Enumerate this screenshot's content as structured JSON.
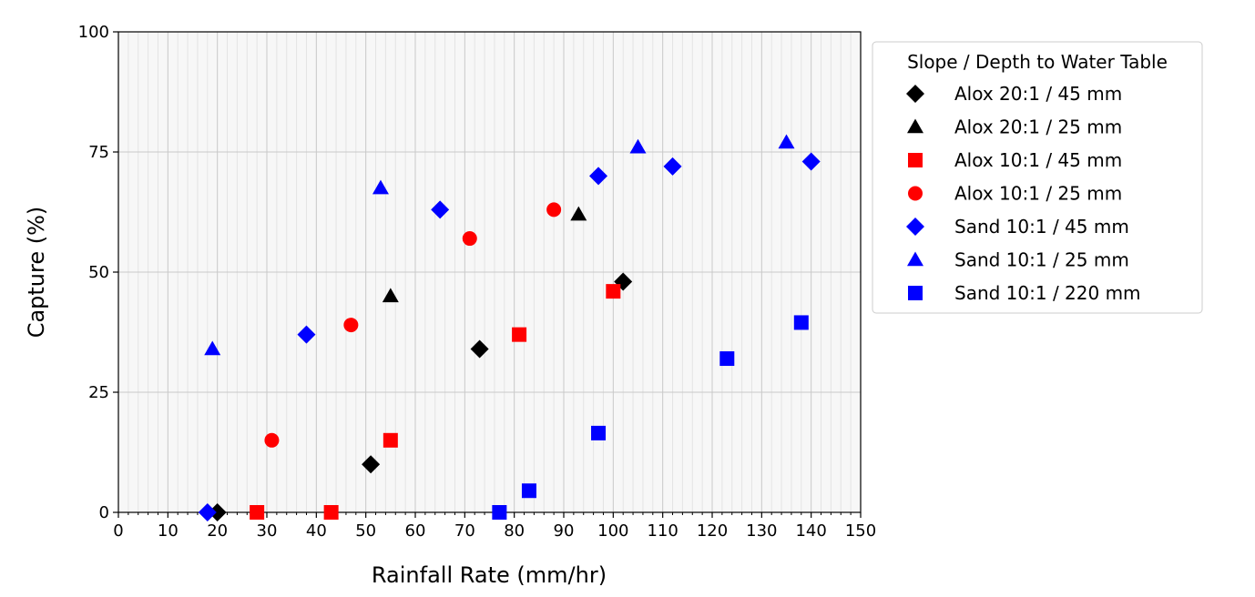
{
  "chart_data": {
    "type": "scatter",
    "title": "",
    "xlabel": "Rainfall Rate (mm/hr)",
    "ylabel": "Capture (%)",
    "xlim": [
      0,
      150
    ],
    "ylim": [
      0,
      100
    ],
    "x_ticks": [
      "0",
      "10",
      "20",
      "30",
      "40",
      "50",
      "60",
      "70",
      "80",
      "90",
      "100",
      "110",
      "120",
      "130",
      "140",
      "150"
    ],
    "y_ticks": [
      "0",
      "25",
      "50",
      "75",
      "100"
    ],
    "grid": true,
    "legend": {
      "title": "Slope / Depth to Water Table",
      "placement": "outside-right-top"
    },
    "series": [
      {
        "name": "Alox 20:1 / 45 mm",
        "marker": "diamond",
        "color": "#000000",
        "points": [
          [
            20,
            0
          ],
          [
            51,
            10
          ],
          [
            73,
            34
          ],
          [
            102,
            48
          ]
        ]
      },
      {
        "name": "Alox 20:1 / 25 mm",
        "marker": "triangle",
        "color": "#000000",
        "points": [
          [
            55,
            45
          ],
          [
            93,
            62
          ]
        ]
      },
      {
        "name": "Alox 10:1 / 45 mm",
        "marker": "square",
        "color": "#ff0000",
        "points": [
          [
            28,
            0
          ],
          [
            43,
            0
          ],
          [
            55,
            15
          ],
          [
            81,
            37
          ],
          [
            100,
            46
          ]
        ]
      },
      {
        "name": "Alox 10:1 / 25 mm",
        "marker": "circle",
        "color": "#ff0000",
        "points": [
          [
            31,
            15
          ],
          [
            47,
            39
          ],
          [
            71,
            57
          ],
          [
            88,
            63
          ]
        ]
      },
      {
        "name": "Sand 10:1 / 45 mm",
        "marker": "diamond",
        "color": "#0000ff",
        "points": [
          [
            18,
            0
          ],
          [
            38,
            37
          ],
          [
            65,
            63
          ],
          [
            97,
            70
          ],
          [
            112,
            72
          ],
          [
            140,
            73
          ]
        ]
      },
      {
        "name": "Sand 10:1 / 25 mm",
        "marker": "triangle",
        "color": "#0000ff",
        "points": [
          [
            19,
            34
          ],
          [
            53,
            67.5
          ],
          [
            105,
            76
          ],
          [
            135,
            77
          ]
        ]
      },
      {
        "name": "Sand 10:1 / 220 mm",
        "marker": "square",
        "color": "#0000ff",
        "points": [
          [
            77,
            0
          ],
          [
            83,
            4.5
          ],
          [
            97,
            16.5
          ],
          [
            123,
            32
          ],
          [
            138,
            39.5
          ]
        ]
      }
    ]
  }
}
